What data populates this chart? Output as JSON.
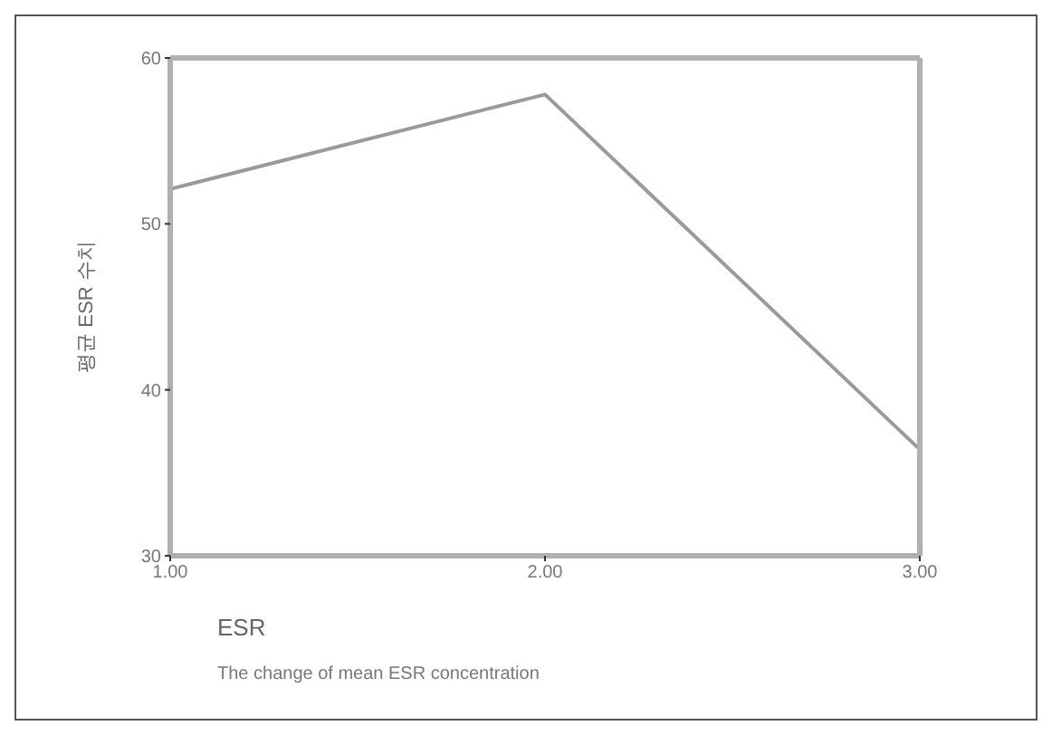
{
  "chart_data": {
    "type": "line",
    "xlabel": "ESR",
    "ylabel": "평균 ESR 수치",
    "annotations": [
      "The change of mean ESR concentration"
    ],
    "x": [
      1,
      2,
      3
    ],
    "series": [
      {
        "color": "#9a9a9a",
        "values": [
          52.1,
          57.8,
          36.4
        ]
      }
    ],
    "xlim": [
      1,
      3
    ],
    "xticks": [
      {
        "value": 1,
        "label": "1.00"
      },
      {
        "value": 2,
        "label": "2.00"
      },
      {
        "value": 3,
        "label": "3.00"
      }
    ],
    "ylim": [
      30,
      60
    ],
    "yticks": [
      30,
      40,
      50,
      60
    ],
    "grid": false,
    "legend": false,
    "marker": "none",
    "line_style": "solid"
  }
}
